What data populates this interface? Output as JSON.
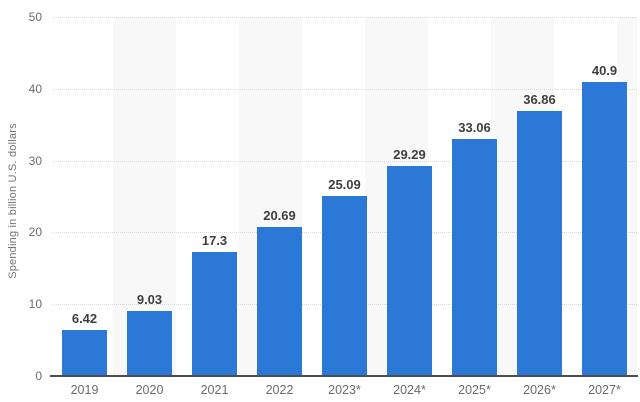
{
  "chart_data": {
    "type": "bar",
    "categories": [
      "2019",
      "2020",
      "2021",
      "2022",
      "2023*",
      "2024*",
      "2025*",
      "2026*",
      "2027*"
    ],
    "values": [
      6.42,
      9.03,
      17.3,
      20.69,
      25.09,
      29.29,
      33.06,
      36.86,
      40.9
    ],
    "value_labels": [
      "6.42",
      "9.03",
      "17.3",
      "20.69",
      "25.09",
      "29.29",
      "33.06",
      "36.86",
      "40.9"
    ],
    "title": "",
    "xlabel": "",
    "ylabel": "Spending in billion U.S. dollars",
    "ylim": [
      0,
      50
    ],
    "yticks": [
      0,
      10,
      20,
      30,
      40,
      50
    ],
    "grid": "horizontal-dotted",
    "legend": "none",
    "plot_background": "alternating-column-stripes"
  },
  "colors": {
    "bar": "#2c78d6",
    "value_label": "#3f3f3f",
    "axis_label": "#6b6b6b",
    "y_axis_title": "#757575",
    "gridline": "#d9d9d9",
    "axis_line": "#4d4d4d",
    "stripe": "#f8f8f8",
    "background": "#ffffff"
  }
}
